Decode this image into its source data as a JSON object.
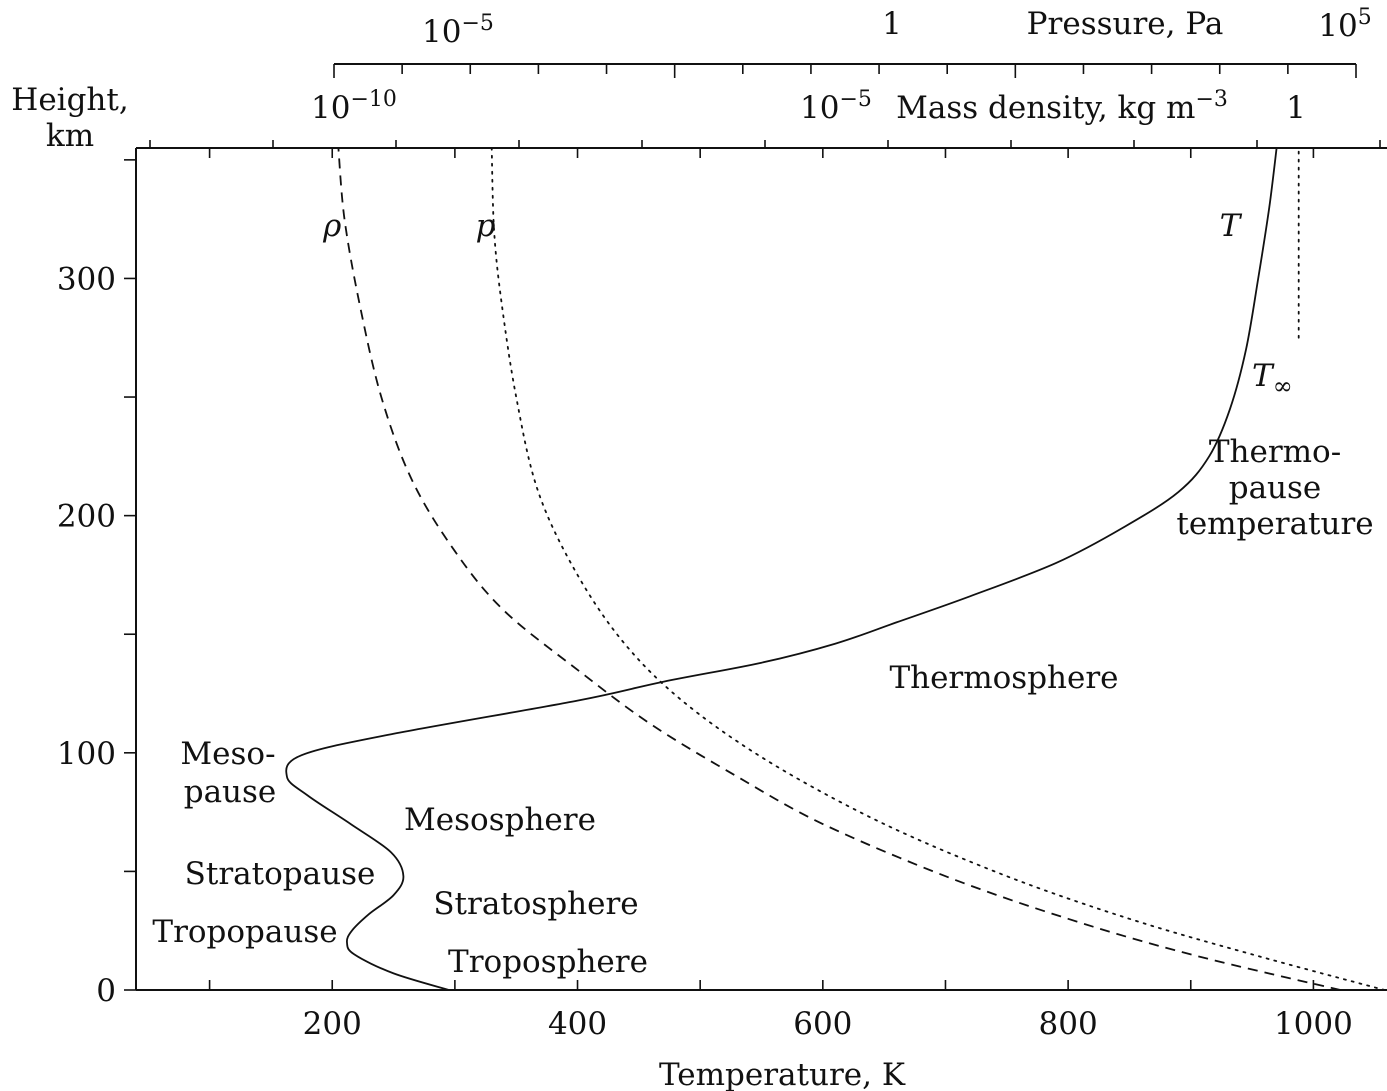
{
  "chart_data": {
    "type": "line",
    "title": "",
    "xlabel": "Temperature, K",
    "ylabel_line1": "Height,",
    "ylabel_line2": "km",
    "xlim": [
      40,
      1060
    ],
    "ylim": [
      0,
      355
    ],
    "x_ticks": [
      100,
      200,
      300,
      400,
      500,
      600,
      700,
      800,
      900,
      1000
    ],
    "x_tick_labels": [
      {
        "value": 200,
        "text": "200"
      },
      {
        "value": 400,
        "text": "400"
      },
      {
        "value": 600,
        "text": "600"
      },
      {
        "value": 800,
        "text": "800"
      },
      {
        "value": 1000,
        "text": "1000"
      }
    ],
    "y_ticks": [
      0,
      50,
      100,
      150,
      200,
      250,
      300,
      350
    ],
    "y_tick_labels": [
      {
        "value": 0,
        "text": "0"
      },
      {
        "value": 100,
        "text": "100"
      },
      {
        "value": 200,
        "text": "200"
      },
      {
        "value": 300,
        "text": "300"
      }
    ],
    "top_axes": {
      "pressure": {
        "label": "Pressure, Pa",
        "scale": "log",
        "range": [
          1e-10,
          100000
        ],
        "tick_labels": [
          {
            "value": 1e-05,
            "base": "10",
            "exp": "−5"
          },
          {
            "value": 1,
            "base": "1",
            "exp": ""
          },
          {
            "value": 100000,
            "base": "10",
            "exp": "5"
          }
        ]
      },
      "density": {
        "label": "Mass density, kg m",
        "label_exp": "−3",
        "scale": "log",
        "tick_labels": [
          {
            "value": 1e-10,
            "base": "10",
            "exp": "−10"
          },
          {
            "value": 1e-05,
            "base": "10",
            "exp": "−5"
          },
          {
            "value": 1,
            "base": "1",
            "exp": ""
          }
        ]
      }
    },
    "series": [
      {
        "name": "T",
        "style": "solid",
        "points": [
          [
            295,
            0
          ],
          [
            250,
            7
          ],
          [
            218,
            15
          ],
          [
            212,
            20
          ],
          [
            216,
            25
          ],
          [
            230,
            32
          ],
          [
            250,
            40
          ],
          [
            258,
            48
          ],
          [
            248,
            58
          ],
          [
            215,
            70
          ],
          [
            180,
            82
          ],
          [
            163,
            90
          ],
          [
            175,
            99
          ],
          [
            250,
            108
          ],
          [
            400,
            122
          ],
          [
            470,
            130
          ],
          [
            550,
            138
          ],
          [
            610,
            146
          ],
          [
            660,
            155
          ],
          [
            720,
            166
          ],
          [
            790,
            180
          ],
          [
            845,
            195
          ],
          [
            890,
            210
          ],
          [
            915,
            225
          ],
          [
            932,
            245
          ],
          [
            945,
            270
          ],
          [
            955,
            300
          ],
          [
            964,
            330
          ],
          [
            970,
            355
          ]
        ]
      },
      {
        "name": "T∞",
        "style": "dotted",
        "points": [
          [
            988,
            275
          ],
          [
            988,
            355
          ]
        ]
      },
      {
        "name": "ρ",
        "style": "dashed",
        "points": [
          [
            1022,
            0
          ],
          [
            900,
            15
          ],
          [
            800,
            30
          ],
          [
            700,
            48
          ],
          [
            600,
            70
          ],
          [
            530,
            90
          ],
          [
            460,
            112
          ],
          [
            400,
            135
          ],
          [
            340,
            160
          ],
          [
            300,
            185
          ],
          [
            265,
            215
          ],
          [
            240,
            250
          ],
          [
            222,
            290
          ],
          [
            210,
            325
          ],
          [
            205,
            355
          ]
        ]
      },
      {
        "name": "p",
        "style": "dotted",
        "points": [
          [
            1058,
            0
          ],
          [
            950,
            15
          ],
          [
            850,
            30
          ],
          [
            750,
            48
          ],
          [
            650,
            70
          ],
          [
            560,
            95
          ],
          [
            490,
            120
          ],
          [
            440,
            145
          ],
          [
            400,
            175
          ],
          [
            368,
            210
          ],
          [
            350,
            250
          ],
          [
            338,
            290
          ],
          [
            332,
            320
          ],
          [
            330,
            355
          ]
        ]
      }
    ],
    "series_labels": [
      {
        "text": "ρ",
        "x": 200,
        "y": 318
      },
      {
        "text": "p",
        "x": 325,
        "y": 318
      },
      {
        "text": "T",
        "x": 932,
        "y": 318
      }
    ],
    "annotations": {
      "t_inf_base": "T",
      "t_inf_sub": "∞",
      "thermopause": [
        "Thermo-",
        "pause",
        "temperature"
      ],
      "thermosphere": "Thermosphere",
      "mesopause": [
        "Meso-",
        "pause"
      ],
      "mesosphere": "Mesosphere",
      "stratopause": "Stratopause",
      "stratosphere": "Stratosphere",
      "tropopause": "Tropopause",
      "troposphere": "Troposphere"
    }
  }
}
